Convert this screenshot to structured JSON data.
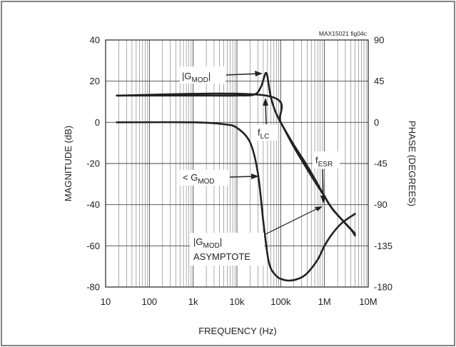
{
  "figure_id": "MAX15021 fig04c",
  "chart_data": {
    "type": "line",
    "xscale": "log",
    "xlabel": "FREQUENCY (Hz)",
    "ylabel": "MAGNITUDE (dB)",
    "y2label": "PHASE (DEGREES)",
    "xlim": [
      10,
      10000000
    ],
    "ylim": [
      -80,
      40
    ],
    "y2lim": [
      -180,
      90
    ],
    "grid": true,
    "x_ticks": [
      {
        "v": 10,
        "label": "10"
      },
      {
        "v": 100,
        "label": "100"
      },
      {
        "v": 1000,
        "label": "1k"
      },
      {
        "v": 10000,
        "label": "10k"
      },
      {
        "v": 100000,
        "label": "100k"
      },
      {
        "v": 1000000,
        "label": "1M"
      },
      {
        "v": 10000000,
        "label": "10M"
      }
    ],
    "y_ticks": [
      {
        "v": 40,
        "label": "40"
      },
      {
        "v": 20,
        "label": "20"
      },
      {
        "v": 0,
        "label": "0"
      },
      {
        "v": -20,
        "label": "-20"
      },
      {
        "v": -40,
        "label": "-40"
      },
      {
        "v": -60,
        "label": "-60"
      },
      {
        "v": -80,
        "label": "-80"
      }
    ],
    "y2_ticks": [
      {
        "v": 90,
        "label": "90"
      },
      {
        "v": 45,
        "label": "45"
      },
      {
        "v": 0,
        "label": "0"
      },
      {
        "v": -45,
        "label": "-45"
      },
      {
        "v": -90,
        "label": "-90"
      },
      {
        "v": -135,
        "label": "-135"
      },
      {
        "v": -180,
        "label": "-180"
      }
    ],
    "series": [
      {
        "axis": "left",
        "points": [
          [
            18,
            13
          ],
          [
            1000,
            13
          ],
          [
            10000,
            13
          ],
          [
            25000,
            13.5
          ],
          [
            35000,
            17
          ],
          [
            42000,
            22
          ],
          [
            46000,
            24
          ],
          [
            50000,
            22
          ],
          [
            60000,
            12
          ],
          [
            80000,
            4
          ],
          [
            120000,
            -3
          ],
          [
            200000,
            -11
          ],
          [
            400000,
            -21
          ],
          [
            700000,
            -30
          ],
          [
            1000000,
            -36
          ],
          [
            1300000,
            -40
          ],
          [
            2000000,
            -45
          ],
          [
            4000000,
            -52
          ],
          [
            5000000,
            -55
          ]
        ]
      },
      {
        "axis": "left",
        "points": [
          [
            18,
            13
          ],
          [
            46000,
            13
          ],
          [
            100000,
            0
          ],
          [
            200000,
            -12
          ],
          [
            500000,
            -26
          ],
          [
            1000000,
            -36
          ],
          [
            1500000,
            -42
          ],
          [
            2000000,
            -45
          ],
          [
            3000000,
            -49
          ],
          [
            5000000,
            -54
          ]
        ]
      },
      {
        "axis": "right",
        "points": [
          [
            18,
            0
          ],
          [
            1000,
            0
          ],
          [
            5000,
            -2
          ],
          [
            10000,
            -6
          ],
          [
            20000,
            -22
          ],
          [
            30000,
            -55
          ],
          [
            40000,
            -108
          ],
          [
            50000,
            -145
          ],
          [
            60000,
            -160
          ],
          [
            80000,
            -168
          ],
          [
            100000,
            -171
          ],
          [
            150000,
            -173
          ],
          [
            250000,
            -171
          ],
          [
            400000,
            -165
          ],
          [
            700000,
            -150
          ],
          [
            1000000,
            -135
          ],
          [
            1500000,
            -122
          ],
          [
            2500000,
            -110
          ],
          [
            5000000,
            -100
          ]
        ]
      }
    ],
    "annotations": [
      {
        "base": "|G",
        "sub": "MOD",
        "tail": "|"
      },
      {
        "base": "f",
        "sub": "LC",
        "tail": ""
      },
      {
        "base": "< G",
        "sub": "MOD",
        "tail": ""
      },
      {
        "base": "f",
        "sub": "ESR",
        "tail": ""
      },
      {
        "base": "|G",
        "sub": "MOD",
        "tail": "|"
      },
      {
        "base": "ASYMPTOTE",
        "sub": "",
        "tail": ""
      }
    ]
  }
}
